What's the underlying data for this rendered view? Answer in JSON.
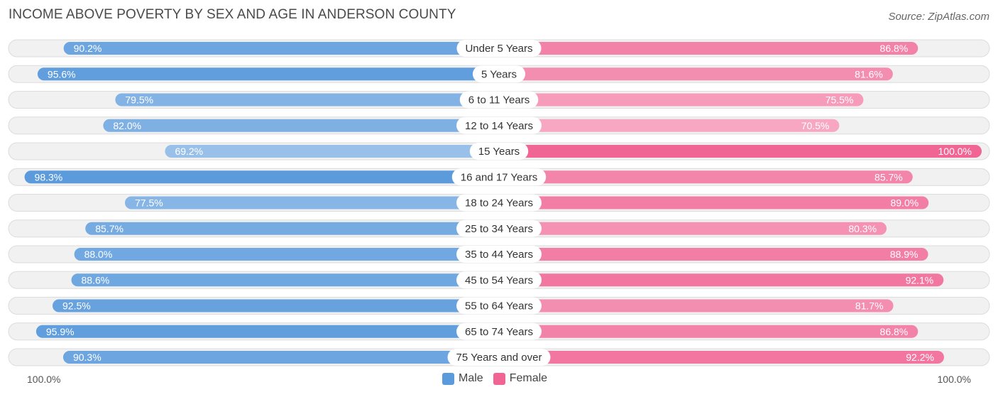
{
  "colors": {
    "male_dark": "#5b9bdc",
    "male_light": "#9cc2ea",
    "female_dark": "#f06594",
    "female_light": "#f7a8c3"
  },
  "chart_data": {
    "type": "bar",
    "orientation": "horizontal-diverging",
    "title": "INCOME ABOVE POVERTY BY SEX AND AGE IN ANDERSON COUNTY",
    "source": "Source: ZipAtlas.com",
    "categories": [
      "Under 5 Years",
      "5 Years",
      "6 to 11 Years",
      "12 to 14 Years",
      "15 Years",
      "16 and 17 Years",
      "18 to 24 Years",
      "25 to 34 Years",
      "35 to 44 Years",
      "45 to 54 Years",
      "55 to 64 Years",
      "65 to 74 Years",
      "75 Years and over"
    ],
    "series": [
      {
        "name": "Male",
        "values": [
          90.2,
          95.6,
          79.5,
          82.0,
          69.2,
          98.3,
          77.5,
          85.7,
          88.0,
          88.6,
          92.5,
          95.9,
          90.3
        ],
        "labels": [
          "90.2%",
          "95.6%",
          "79.5%",
          "82.0%",
          "69.2%",
          "98.3%",
          "77.5%",
          "85.7%",
          "88.0%",
          "88.6%",
          "92.5%",
          "95.9%",
          "90.3%"
        ]
      },
      {
        "name": "Female",
        "values": [
          86.8,
          81.6,
          75.5,
          70.5,
          100.0,
          85.7,
          89.0,
          80.3,
          88.9,
          92.1,
          81.7,
          86.8,
          92.2
        ],
        "labels": [
          "86.8%",
          "81.6%",
          "75.5%",
          "70.5%",
          "100.0%",
          "85.7%",
          "89.0%",
          "80.3%",
          "88.9%",
          "92.1%",
          "81.7%",
          "86.8%",
          "92.2%"
        ]
      }
    ],
    "xlim": [
      0,
      100
    ],
    "axis_left_label": "100.0%",
    "axis_right_label": "100.0%",
    "legend": [
      "Male",
      "Female"
    ],
    "legend_position": "bottom-center"
  }
}
